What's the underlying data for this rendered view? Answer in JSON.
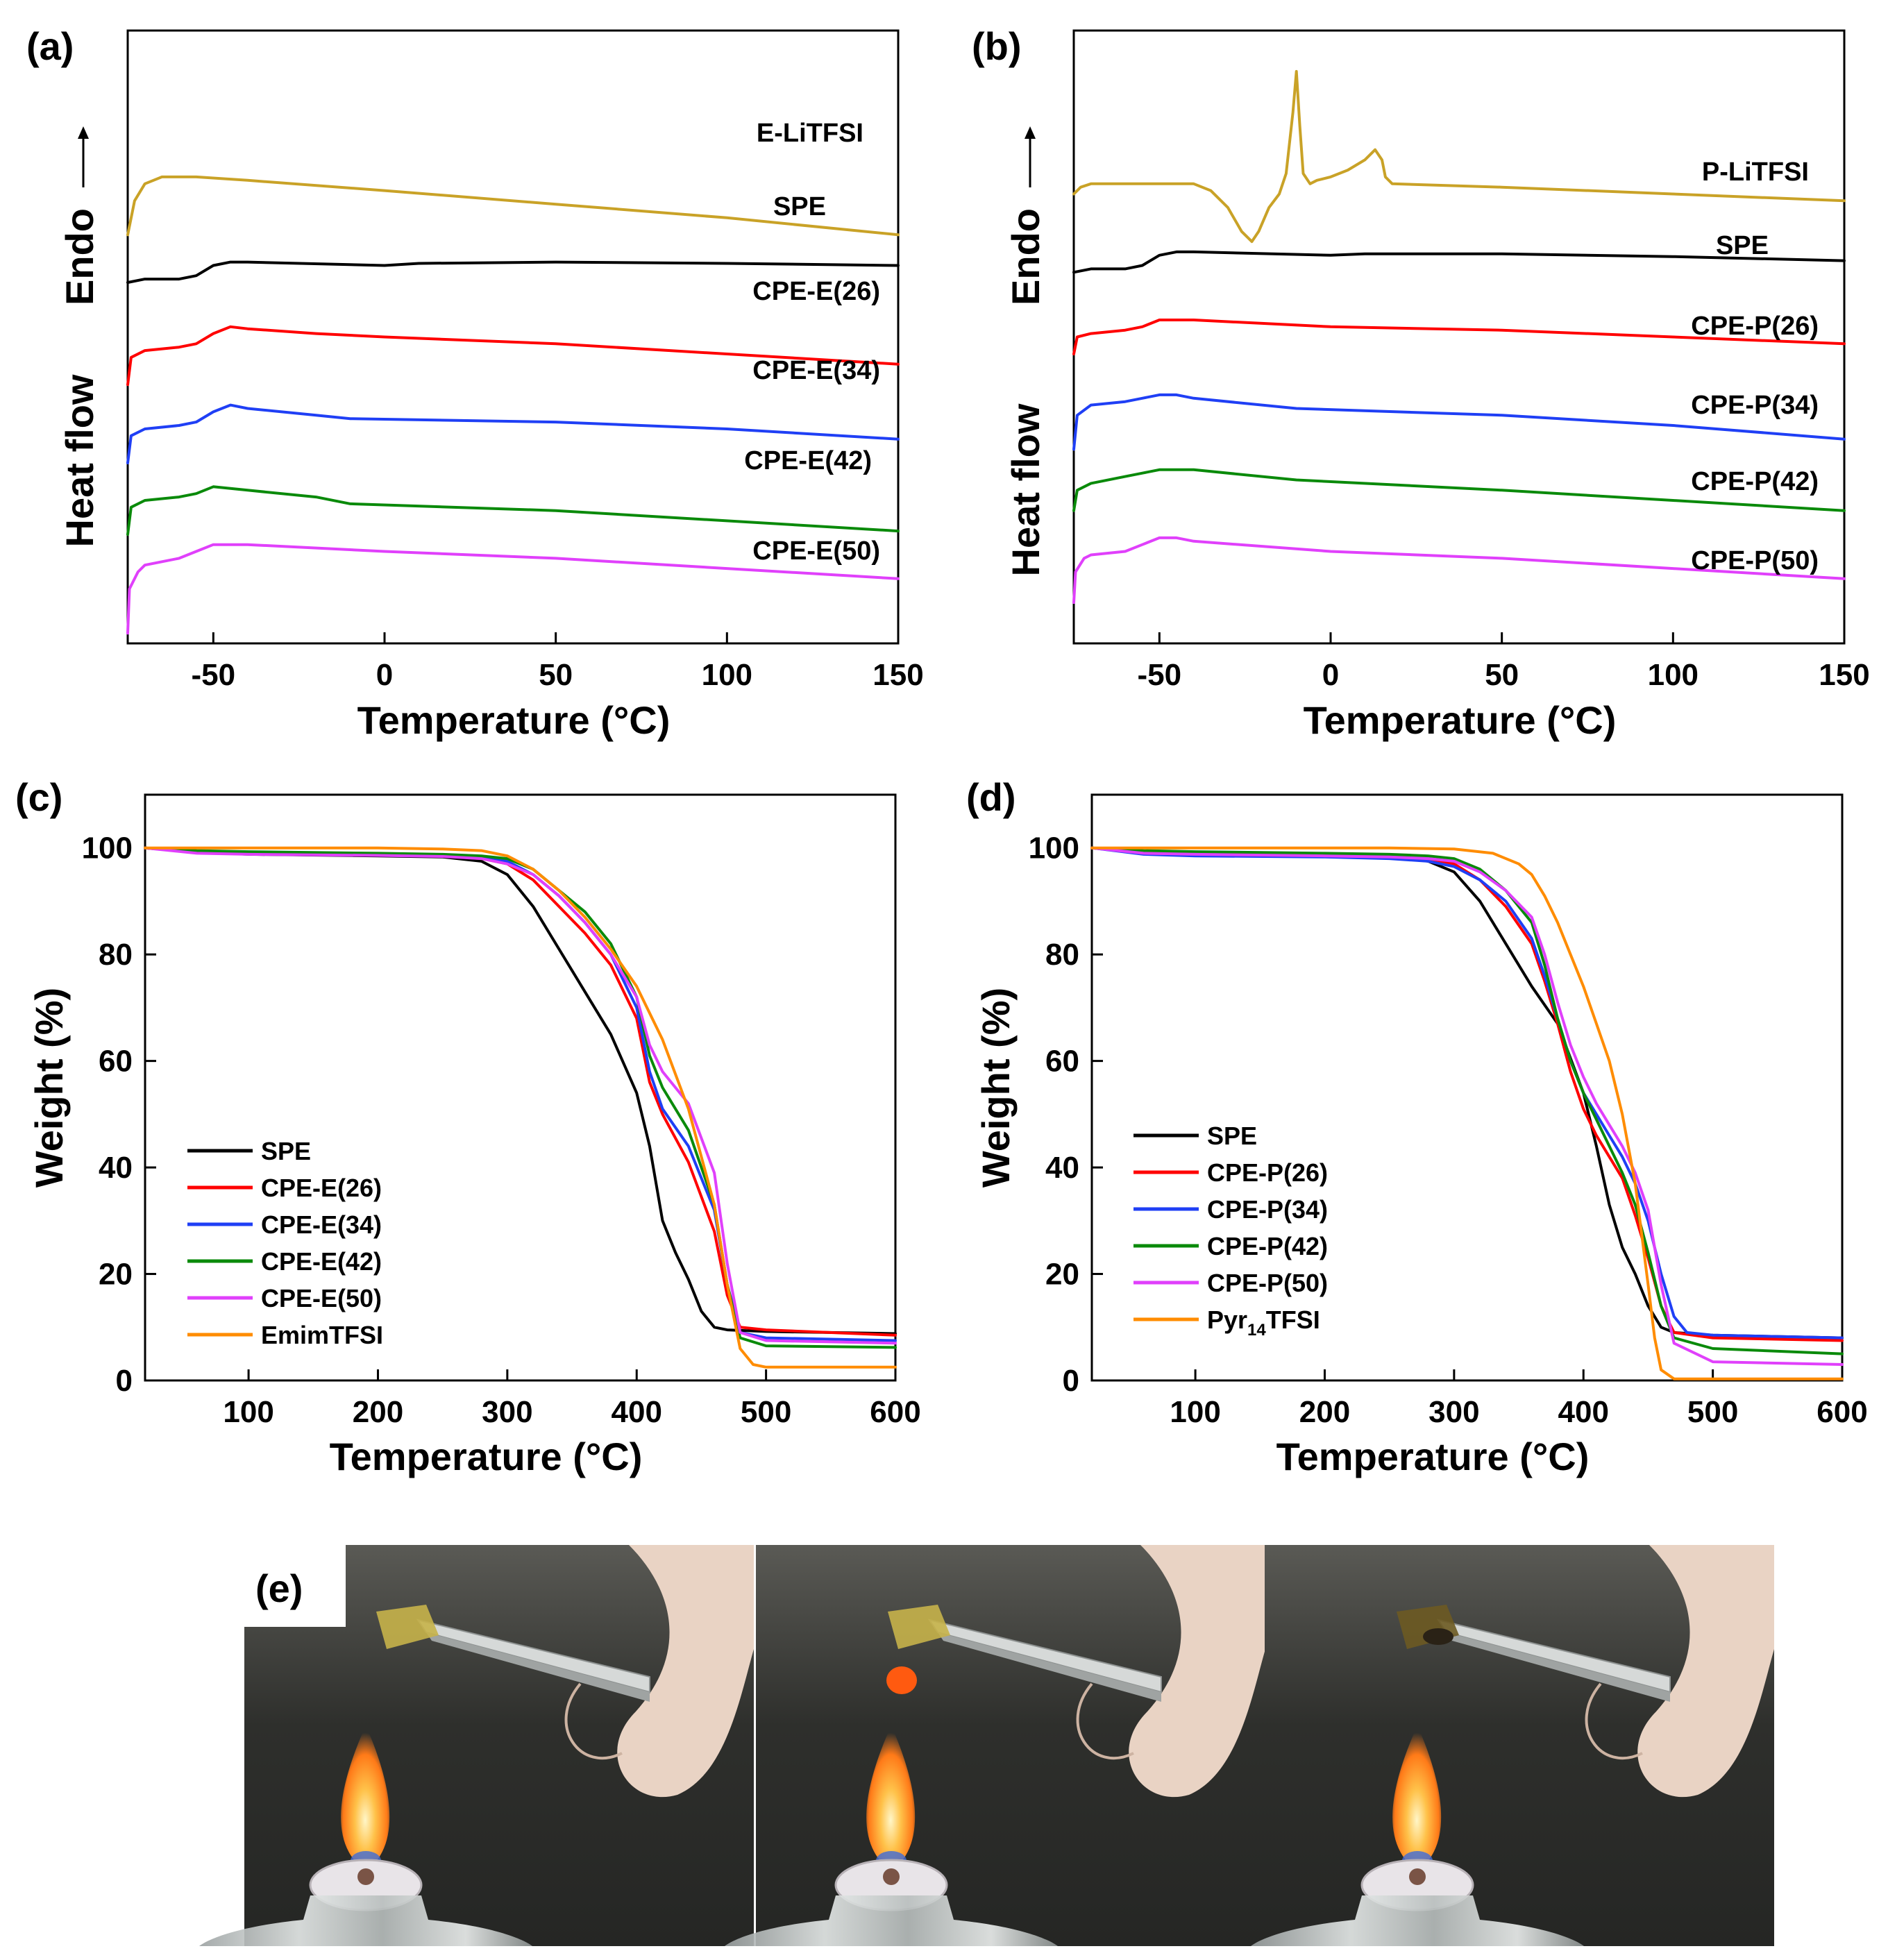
{
  "chart_data": [
    {
      "panel": "(a)",
      "type": "line",
      "xlabel": "Temperature (°C)",
      "ylabel": "Heat  flow",
      "arrow_label": "Endo",
      "xlim": [
        -75,
        150
      ],
      "xticks": [
        -50,
        0,
        50,
        100,
        150
      ],
      "y_ticks_shown": false,
      "series": [
        {
          "name": "E-LiTFSI",
          "color": "#c9a227",
          "x": [
            -75,
            -73,
            -70,
            -65,
            -55,
            -40,
            0,
            50,
            100,
            150
          ],
          "y": [
            6.0,
            6.5,
            6.75,
            6.85,
            6.85,
            6.8,
            6.65,
            6.45,
            6.25,
            6.0
          ]
        },
        {
          "name": "SPE",
          "color": "#000000",
          "x": [
            -75,
            -70,
            -60,
            -55,
            -50,
            -45,
            -40,
            0,
            10,
            50,
            100,
            150
          ],
          "y": [
            5.3,
            5.35,
            5.35,
            5.4,
            5.55,
            5.6,
            5.6,
            5.55,
            5.58,
            5.6,
            5.58,
            5.55
          ]
        },
        {
          "name": "CPE-E(26)",
          "color": "#ff0000",
          "x": [
            -75,
            -74,
            -70,
            -60,
            -55,
            -50,
            -45,
            -40,
            -20,
            0,
            50,
            100,
            150
          ],
          "y": [
            3.8,
            4.2,
            4.3,
            4.35,
            4.4,
            4.55,
            4.65,
            4.62,
            4.55,
            4.5,
            4.4,
            4.25,
            4.1
          ]
        },
        {
          "name": "CPE-E(34)",
          "color": "#1f3ff5",
          "x": [
            -75,
            -74,
            -70,
            -60,
            -55,
            -50,
            -45,
            -40,
            -20,
            -10,
            50,
            100,
            150
          ],
          "y": [
            2.65,
            3.05,
            3.15,
            3.2,
            3.25,
            3.4,
            3.5,
            3.45,
            3.35,
            3.3,
            3.25,
            3.15,
            3.0
          ]
        },
        {
          "name": "CPE-E(42)",
          "color": "#0a8a0a",
          "x": [
            -75,
            -74,
            -70,
            -60,
            -55,
            -50,
            -40,
            -20,
            -10,
            50,
            100,
            150
          ],
          "y": [
            1.6,
            2.0,
            2.1,
            2.15,
            2.2,
            2.3,
            2.25,
            2.15,
            2.05,
            1.95,
            1.8,
            1.65
          ]
        },
        {
          "name": "CPE-E(50)",
          "color": "#e040fb",
          "x": [
            -75,
            -74.5,
            -72,
            -70,
            -65,
            -60,
            -55,
            -50,
            -45,
            -40,
            0,
            50,
            100,
            150
          ],
          "y": [
            0.15,
            0.8,
            1.05,
            1.15,
            1.2,
            1.25,
            1.35,
            1.45,
            1.45,
            1.45,
            1.35,
            1.25,
            1.1,
            0.95
          ]
        }
      ]
    },
    {
      "panel": "(b)",
      "type": "line",
      "xlabel": "Temperature (°C)",
      "ylabel": "Heat  flow",
      "arrow_label": "Endo",
      "xlim": [
        -75,
        150
      ],
      "xticks": [
        -50,
        0,
        50,
        100,
        150
      ],
      "y_ticks_shown": false,
      "series": [
        {
          "name": "P-LiTFSI",
          "color": "#c9a227",
          "x": [
            -75,
            -73,
            -70,
            -60,
            -40,
            -35,
            -30,
            -26,
            -23,
            -21,
            -18,
            -15,
            -13,
            -11,
            -10,
            -9,
            -8,
            -6,
            -4,
            0,
            5,
            10,
            13,
            15,
            16,
            18,
            50,
            100,
            150
          ],
          "y": [
            6.6,
            6.7,
            6.75,
            6.75,
            6.75,
            6.65,
            6.4,
            6.05,
            5.9,
            6.05,
            6.4,
            6.6,
            6.9,
            7.8,
            8.4,
            7.6,
            6.9,
            6.75,
            6.8,
            6.85,
            6.95,
            7.1,
            7.25,
            7.1,
            6.85,
            6.75,
            6.7,
            6.6,
            6.5
          ]
        },
        {
          "name": "SPE",
          "color": "#000000",
          "x": [
            -75,
            -70,
            -60,
            -55,
            -50,
            -45,
            -40,
            0,
            10,
            50,
            100,
            150
          ],
          "y": [
            5.45,
            5.5,
            5.5,
            5.55,
            5.7,
            5.75,
            5.75,
            5.7,
            5.72,
            5.72,
            5.68,
            5.62
          ]
        },
        {
          "name": "CPE-P(26)",
          "color": "#ff0000",
          "x": [
            -75,
            -74,
            -70,
            -60,
            -55,
            -50,
            -45,
            -40,
            -20,
            0,
            50,
            100,
            150
          ],
          "y": [
            4.25,
            4.5,
            4.55,
            4.6,
            4.65,
            4.75,
            4.75,
            4.75,
            4.7,
            4.65,
            4.6,
            4.5,
            4.4
          ]
        },
        {
          "name": "CPE-P(34)",
          "color": "#1f3ff5",
          "x": [
            -75,
            -74,
            -70,
            -60,
            -55,
            -50,
            -45,
            -40,
            -10,
            50,
            100,
            150
          ],
          "y": [
            2.85,
            3.35,
            3.5,
            3.55,
            3.6,
            3.65,
            3.65,
            3.6,
            3.45,
            3.35,
            3.2,
            3.0
          ]
        },
        {
          "name": "CPE-P(42)",
          "color": "#0a8a0a",
          "x": [
            -75,
            -74,
            -70,
            -60,
            -55,
            -50,
            -40,
            -10,
            50,
            100,
            150
          ],
          "y": [
            1.95,
            2.25,
            2.35,
            2.45,
            2.5,
            2.55,
            2.55,
            2.4,
            2.25,
            2.1,
            1.95
          ]
        },
        {
          "name": "CPE-P(50)",
          "color": "#e040fb",
          "x": [
            -75,
            -74.5,
            -72,
            -70,
            -60,
            -55,
            -50,
            -45,
            -40,
            0,
            50,
            100,
            150
          ],
          "y": [
            0.6,
            1.05,
            1.25,
            1.3,
            1.35,
            1.45,
            1.55,
            1.55,
            1.5,
            1.35,
            1.25,
            1.1,
            0.95
          ]
        }
      ]
    },
    {
      "panel": "(c)",
      "type": "line",
      "xlabel": "Temperature (°C)",
      "ylabel": "Weight  (%)",
      "xlim": [
        20,
        600
      ],
      "ylim": [
        0,
        110
      ],
      "xticks": [
        100,
        200,
        300,
        400,
        500,
        600
      ],
      "yticks": [
        0,
        20,
        40,
        60,
        80,
        100
      ],
      "legend_position": "lower-left",
      "series": [
        {
          "name": "SPE",
          "color": "#000000",
          "x": [
            20,
            60,
            100,
            200,
            250,
            280,
            300,
            320,
            340,
            360,
            380,
            400,
            410,
            420,
            430,
            440,
            450,
            460,
            470,
            500,
            600
          ],
          "y": [
            100,
            99.2,
            98.8,
            98.5,
            98.3,
            97.5,
            95,
            89,
            81,
            73,
            65,
            54,
            44,
            30,
            24,
            19,
            13,
            10,
            9.5,
            9.2,
            8.8
          ]
        },
        {
          "name": "CPE-E(26)",
          "color": "#ff0000",
          "x": [
            20,
            60,
            100,
            200,
            250,
            280,
            300,
            320,
            340,
            360,
            380,
            400,
            410,
            420,
            440,
            460,
            470,
            480,
            500,
            600
          ],
          "y": [
            100,
            99.2,
            99,
            98.8,
            98.5,
            98,
            97,
            94,
            89,
            84,
            78,
            68,
            56,
            50,
            41,
            28,
            16,
            10,
            9.5,
            8.5
          ]
        },
        {
          "name": "CPE-E(34)",
          "color": "#1f3ff5",
          "x": [
            20,
            60,
            100,
            200,
            250,
            280,
            300,
            320,
            340,
            360,
            380,
            400,
            410,
            420,
            440,
            460,
            470,
            480,
            500,
            600
          ],
          "y": [
            100,
            99.2,
            99,
            98.8,
            98.6,
            98.2,
            97.5,
            95,
            91,
            86,
            80,
            70,
            58,
            51,
            44,
            32,
            18,
            9,
            8,
            7.5
          ]
        },
        {
          "name": "CPE-E(42)",
          "color": "#0a8a0a",
          "x": [
            20,
            60,
            100,
            200,
            250,
            280,
            300,
            320,
            340,
            360,
            380,
            400,
            410,
            420,
            440,
            460,
            470,
            480,
            500,
            600
          ],
          "y": [
            100,
            99.5,
            99.3,
            99,
            98.8,
            98.5,
            98,
            96,
            92,
            88,
            82,
            72,
            61,
            55,
            47,
            33,
            18,
            8,
            6.5,
            6.2
          ]
        },
        {
          "name": "CPE-E(50)",
          "color": "#e040fb",
          "x": [
            20,
            60,
            100,
            200,
            250,
            280,
            300,
            320,
            340,
            360,
            380,
            400,
            410,
            420,
            440,
            460,
            470,
            480,
            500,
            600
          ],
          "y": [
            100,
            99,
            98.8,
            98.6,
            98.4,
            98,
            97,
            95,
            91,
            86,
            80,
            72,
            63,
            58,
            52,
            39,
            22,
            9,
            7.5,
            7
          ]
        },
        {
          "name": "EmimTFSI",
          "color": "#ff8c00",
          "x": [
            20,
            60,
            100,
            200,
            250,
            280,
            300,
            320,
            340,
            360,
            380,
            400,
            420,
            440,
            460,
            470,
            480,
            490,
            500,
            600
          ],
          "y": [
            100,
            100,
            100,
            100,
            99.8,
            99.5,
            98.5,
            96,
            92,
            87,
            81,
            74,
            64,
            51,
            33,
            18,
            6,
            3,
            2.5,
            2.5
          ]
        }
      ]
    },
    {
      "panel": "(d)",
      "type": "line",
      "xlabel": "Temperature (°C)",
      "ylabel": "Weight  (%)",
      "xlim": [
        20,
        600
      ],
      "ylim": [
        0,
        110
      ],
      "xticks": [
        100,
        200,
        300,
        400,
        500,
        600
      ],
      "yticks": [
        0,
        20,
        40,
        60,
        80,
        100
      ],
      "legend_position": "lower-left",
      "series": [
        {
          "name": "SPE",
          "color": "#000000",
          "x": [
            20,
            60,
            100,
            200,
            250,
            280,
            300,
            320,
            340,
            360,
            380,
            400,
            410,
            420,
            430,
            440,
            450,
            460,
            470,
            500,
            600
          ],
          "y": [
            100,
            99.2,
            99,
            98.8,
            98.5,
            97.5,
            95.5,
            90,
            82,
            74,
            67,
            54,
            44,
            33,
            25,
            20,
            14,
            10,
            9,
            8.5,
            8
          ]
        },
        {
          "name": "CPE-P(26)",
          "color": "#ff0000",
          "x": [
            20,
            60,
            100,
            200,
            250,
            280,
            300,
            320,
            340,
            360,
            370,
            380,
            390,
            400,
            410,
            420,
            430,
            440,
            450,
            460,
            470,
            500,
            600
          ],
          "y": [
            100,
            99.3,
            99,
            98.7,
            98.5,
            98,
            97,
            94,
            89,
            82,
            75,
            67,
            58,
            51,
            46,
            42,
            38,
            31,
            23,
            14,
            9,
            8,
            7.5
          ]
        },
        {
          "name": "CPE-P(34)",
          "color": "#1f3ff5",
          "x": [
            20,
            60,
            100,
            200,
            250,
            280,
            300,
            320,
            340,
            360,
            370,
            380,
            390,
            400,
            410,
            420,
            430,
            440,
            450,
            460,
            470,
            480,
            500,
            600
          ],
          "y": [
            100,
            98.8,
            98.5,
            98.3,
            98,
            97.5,
            96.5,
            94,
            90,
            83,
            76,
            68,
            60,
            54,
            50,
            46,
            42,
            37,
            30,
            20,
            12,
            9,
            8.5,
            8
          ]
        },
        {
          "name": "CPE-P(42)",
          "color": "#0a8a0a",
          "x": [
            20,
            60,
            100,
            200,
            250,
            280,
            300,
            320,
            340,
            360,
            370,
            380,
            390,
            400,
            410,
            420,
            430,
            440,
            450,
            460,
            470,
            500,
            600
          ],
          "y": [
            100,
            99.5,
            99.3,
            99,
            98.8,
            98.5,
            98,
            96,
            92,
            86,
            78,
            68,
            60,
            54,
            49,
            44,
            39,
            33,
            24,
            14,
            8,
            6,
            5
          ]
        },
        {
          "name": "CPE-P(50)",
          "color": "#e040fb",
          "x": [
            20,
            60,
            100,
            200,
            250,
            280,
            300,
            320,
            340,
            360,
            370,
            380,
            390,
            400,
            410,
            420,
            430,
            440,
            450,
            460,
            470,
            500,
            600
          ],
          "y": [
            100,
            99,
            98.8,
            98.5,
            98.3,
            98,
            97.5,
            95.5,
            92,
            87,
            80,
            71,
            63,
            57,
            52,
            48,
            44,
            39,
            32,
            18,
            7,
            3.5,
            3
          ]
        },
        {
          "name": "Pyr14TFSI",
          "name_base": "Pyr",
          "name_sub": "14",
          "name_tail": "TFSI",
          "color": "#ff8c00",
          "x": [
            20,
            60,
            100,
            200,
            250,
            300,
            330,
            350,
            360,
            370,
            380,
            390,
            400,
            410,
            420,
            430,
            440,
            450,
            455,
            460,
            470,
            600
          ],
          "y": [
            100,
            100,
            100,
            100,
            100,
            99.8,
            99,
            97,
            95,
            91,
            86,
            80,
            74,
            67,
            60,
            50,
            37,
            18,
            8,
            2,
            0.3,
            0.3
          ]
        }
      ]
    }
  ],
  "panel_e": {
    "label": "(e)"
  }
}
